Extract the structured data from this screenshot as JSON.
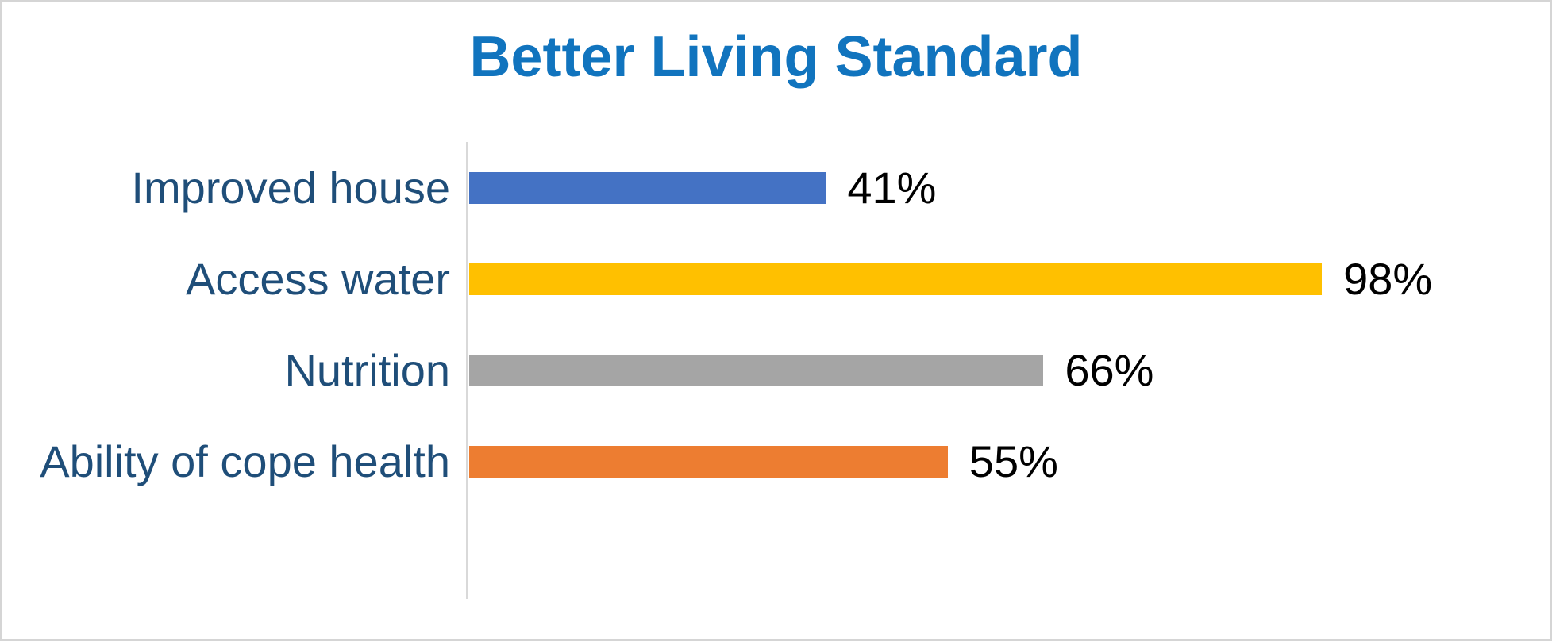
{
  "frame": {
    "background": "#FFFFFF",
    "border_color": "#D5D5D5"
  },
  "chart_data": {
    "type": "bar",
    "orientation": "horizontal",
    "title": "Better Living Standard",
    "categories": [
      "Improved house",
      "Access water",
      "Nutrition",
      "Ability of cope health"
    ],
    "values": [
      41,
      98,
      66,
      55
    ],
    "data_labels": [
      "41%",
      "98%",
      "66%",
      "55%"
    ],
    "bar_colors": [
      "#4472C4",
      "#FFC000",
      "#A5A5A5",
      "#ED7D31"
    ],
    "xlim": [
      0,
      100
    ],
    "xlabel": "",
    "ylabel": "",
    "legend": false,
    "gridlines": false,
    "category_slots": 5,
    "colors": {
      "title": "#1174BE",
      "category_label": "#1F4E79",
      "data_label": "#000000",
      "axis_line": "#D9D9D9"
    }
  }
}
